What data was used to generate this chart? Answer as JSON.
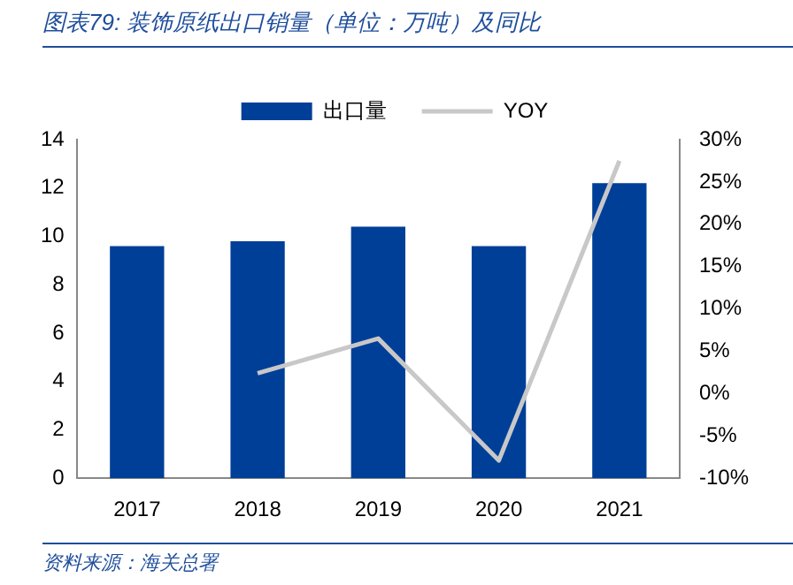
{
  "chart_data": {
    "type": "bar",
    "title": "图表79: 装饰原纸出口销量（单位：万吨）及同比",
    "categories": [
      "2017",
      "2018",
      "2019",
      "2020",
      "2021"
    ],
    "series": [
      {
        "name": "出口量",
        "color": "#003f98",
        "values": [
          9.6,
          9.8,
          10.4,
          9.6,
          12.2
        ]
      },
      {
        "name": "YOY",
        "type": "line",
        "axis": "y2",
        "color": "#c8c8c8",
        "marker": "none",
        "values": [
          null,
          2.4,
          6.5,
          -7.9,
          27.5
        ]
      }
    ],
    "ylim": [
      0,
      14
    ],
    "yticks": [
      0,
      2,
      4,
      6,
      8,
      10,
      12,
      14
    ],
    "y2lim": [
      -10,
      30
    ],
    "y2ticks": [
      {
        "value": -10,
        "label": "-10%"
      },
      {
        "value": -5,
        "label": "-5%"
      },
      {
        "value": 0,
        "label": "0%"
      },
      {
        "value": 5,
        "label": "5%"
      },
      {
        "value": 10,
        "label": "10%"
      },
      {
        "value": 15,
        "label": "15%"
      },
      {
        "value": 20,
        "label": "20%"
      },
      {
        "value": 25,
        "label": "25%"
      },
      {
        "value": 30,
        "label": "30%"
      }
    ],
    "grid": false,
    "legend": "top",
    "annotations": [
      "资料来源：海关总署"
    ]
  }
}
